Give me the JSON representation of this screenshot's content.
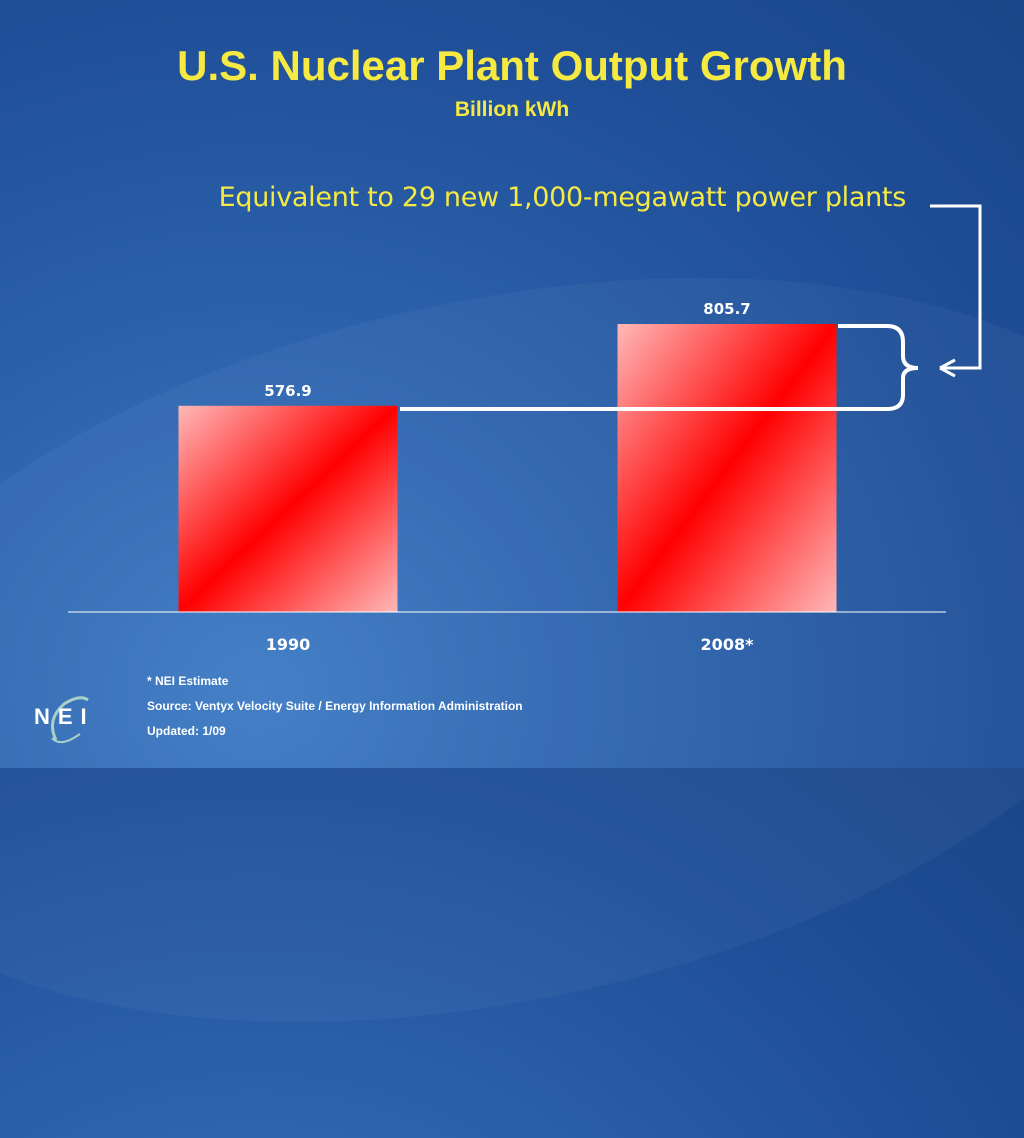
{
  "slide": {
    "title": "U.S. Nuclear Plant Output Growth",
    "subtitle": "Billion kWh",
    "annotation": "Equivalent to 29 new 1,000-megawatt power plants",
    "notes": [
      "* NEI Estimate",
      "Source: Ventyx Velocity Suite / Energy Information Administration",
      "Updated: 1/09"
    ],
    "logo_text": "NEI",
    "colors": {
      "title": "#f5e942",
      "bar_dark": "#ff0000",
      "bar_light": "#ffb3b3",
      "background": "#2158a3"
    }
  },
  "chart_data": {
    "type": "bar",
    "categories": [
      "1990",
      "2008*"
    ],
    "values": [
      576.9,
      805.7
    ],
    "data_labels": [
      "576.9",
      "805.7"
    ],
    "title": "U.S. Nuclear Plant Output Growth",
    "subtitle": "Billion kWh",
    "xlabel": "",
    "ylabel": "",
    "grid": false,
    "legend": "none"
  }
}
